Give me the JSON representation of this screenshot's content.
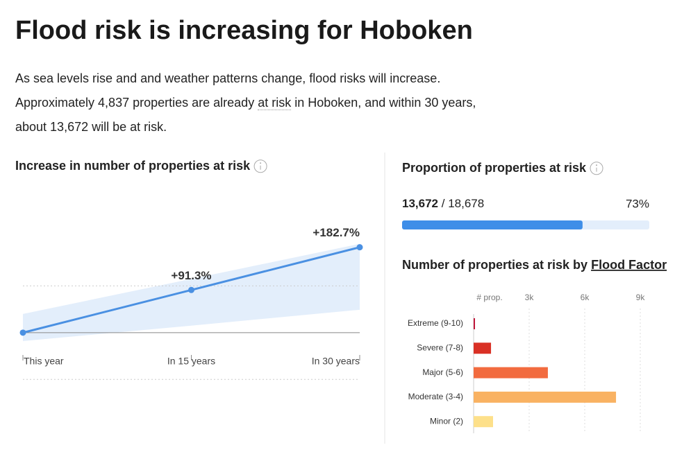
{
  "title": "Flood risk is increasing for Hoboken",
  "intro": [
    "As sea levels rise and and weather patterns change, flood risks will increase. Approximately 4,837 properties are already ",
    "at risk",
    " in Hoboken, and within 30 years, about 13,672 will be at risk."
  ],
  "proportion": {
    "title": "Proportion of properties at risk",
    "at_risk": "13,672",
    "separator": "/",
    "total": "18,678",
    "percent": {
      "value": 73,
      "label": "73%"
    },
    "color": "#3e8ee8",
    "track_color": "#e3eefb"
  },
  "chart_data": [
    {
      "type": "line",
      "title": "Increase in number of properties at risk",
      "categories": [
        "This year",
        "In 15 years",
        "In 30 years"
      ],
      "values": [
        0,
        91.3,
        182.7
      ],
      "value_labels": [
        null,
        "+91.3%",
        "+182.7%"
      ],
      "band_upper": [
        40,
        115,
        190
      ],
      "band_lower": [
        -18,
        15,
        49
      ],
      "color": "#4a90e2",
      "band_color": "#e3eefb",
      "ylim": [
        -104,
        200
      ],
      "yticks": [
        -100,
        0,
        100
      ]
    },
    {
      "type": "hbar",
      "title_parts": [
        "Number of properties at risk by ",
        "Flood Factor"
      ],
      "axis_label": "# prop.",
      "categories": [
        "Extreme (9-10)",
        "Severe (7-8)",
        "Major (5-6)",
        "Moderate (3-4)",
        "Minor (2)"
      ],
      "values": [
        75,
        940,
        4010,
        7690,
        1050
      ],
      "colors": [
        "#c0163a",
        "#d93025",
        "#f26b3f",
        "#f9b262",
        "#fde08a"
      ],
      "xlim": [
        0,
        12000
      ],
      "xticks": [
        {
          "value": 3000,
          "label": "3k"
        },
        {
          "value": 6000,
          "label": "6k"
        },
        {
          "value": 9000,
          "label": "9k"
        }
      ]
    }
  ]
}
